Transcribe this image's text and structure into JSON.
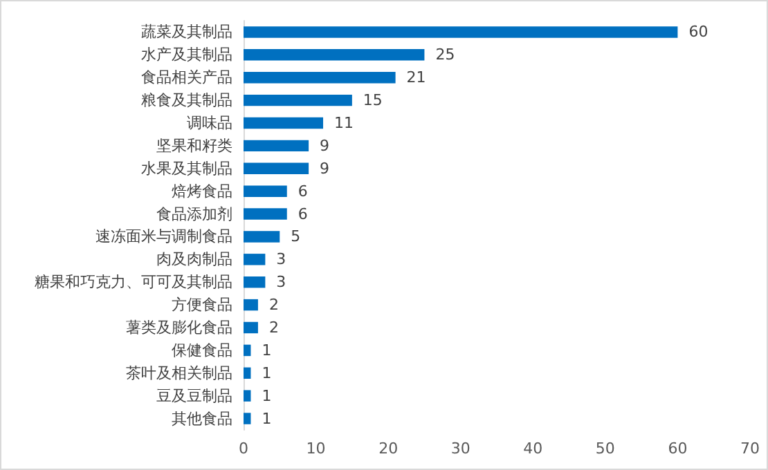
{
  "chart_data": {
    "type": "bar",
    "orientation": "horizontal",
    "categories": [
      "蔬菜及其制品",
      "水产及其制品",
      "食品相关产品",
      "粮食及其制品",
      "调味品",
      "坚果和籽类",
      "水果及其制品",
      "焙烤食品",
      "食品添加剂",
      "速冻面米与调制食品",
      "肉及肉制品",
      "糖果和巧克力、可可及其制品",
      "方便食品",
      "薯类及膨化食品",
      "保健食品",
      "茶叶及相关制品",
      "豆及豆制品",
      "其他食品"
    ],
    "values": [
      60,
      25,
      21,
      15,
      11,
      9,
      9,
      6,
      6,
      5,
      3,
      3,
      2,
      2,
      1,
      1,
      1,
      1
    ],
    "color": "#0070c0",
    "xlim": [
      0,
      70
    ],
    "xticks": [
      0,
      10,
      20,
      30,
      40,
      50,
      60,
      70
    ],
    "data_labels": true
  }
}
